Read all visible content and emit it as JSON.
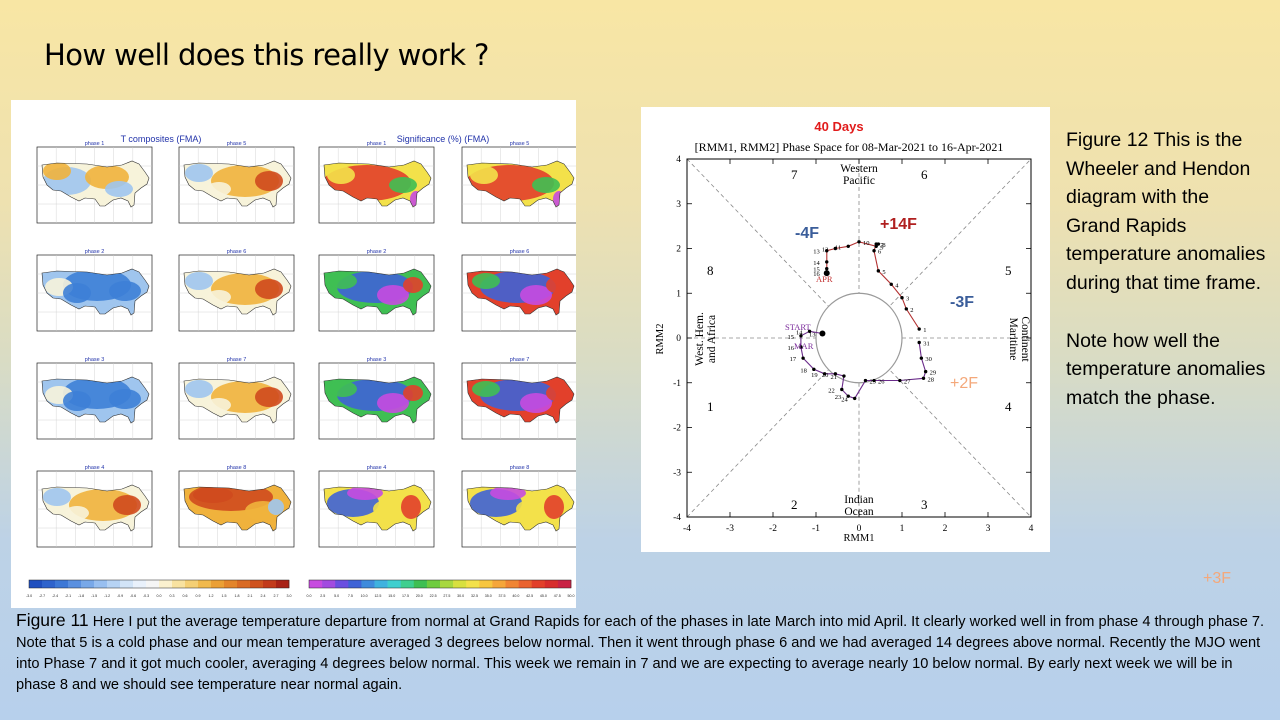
{
  "slide": {
    "title": "How well does this really work ?",
    "side_paragraph_1": "Figure 12  This is the Wheeler  and Hendon diagram with the Grand Rapids temperature anomalies during that time frame.",
    "side_paragraph_2": "Note how well the temperature anomalies match the phase.",
    "floating_label": "+3F",
    "caption_label": "Figure 11",
    "caption_text": " Here I put the average temperature departure from normal at Grand Rapids for each of the phases in late March into mid April.  It clearly worked well in from phase 4 through phase 7.  Note that 5 is a cold phase and our mean temperature averaged 3 degrees below normal.  Then it went through phase 6 and we had averaged 14 degrees above normal.  Recently the MJO went into Phase 7 and it got much cooler, averaging 4 degrees below normal.  This week we remain in 7 and we are expecting to average nearly 10 below normal.  By early next week we will be in phase 8 and we should see temperature near normal again."
  },
  "figure11": {
    "left_header": "T composites (FMA)",
    "right_header": "Significance (%) (FMA)",
    "left_colorbar_ticks": [
      "-3.0",
      "-2.7",
      "-2.4",
      "-2.1",
      "-1.8",
      "-1.5",
      "-1.2",
      "-0.9",
      "-0.6",
      "-0.3",
      "0.0",
      "0.3",
      "0.6",
      "0.9",
      "1.2",
      "1.5",
      "1.8",
      "2.1",
      "2.4",
      "2.7",
      "3.0"
    ],
    "right_colorbar_ticks": [
      "0.0",
      "2.5",
      "5.0",
      "7.5",
      "10.0",
      "12.5",
      "15.0",
      "17.5",
      "20.0",
      "22.5",
      "27.5",
      "30.0",
      "32.5",
      "35.0",
      "37.5",
      "40.0",
      "42.5",
      "45.0",
      "47.5",
      "50.0"
    ],
    "rows": [
      {
        "left_phase": "phase 1",
        "right_phase": "phase 5",
        "left_style": "mixed",
        "right_style": "warm",
        "sig_left": "hot",
        "sig_right": "hot"
      },
      {
        "left_phase": "phase 2",
        "right_phase": "phase 6",
        "left_style": "cool",
        "right_style": "warm",
        "sig_left": "cool",
        "sig_right": "cool"
      },
      {
        "left_phase": "phase 3",
        "right_phase": "phase 7",
        "left_style": "cool",
        "right_style": "warm",
        "sig_left": "cool",
        "sig_right": "cool"
      },
      {
        "left_phase": "phase 4",
        "right_phase": "phase 8",
        "left_style": "warm",
        "right_style": "hot",
        "sig_left": "mixed",
        "sig_right": "mixed"
      }
    ],
    "colors": {
      "cold": "#3d7fd6",
      "cool": "#9fc5ee",
      "neutral": "#f7f3da",
      "warm": "#f0b23c",
      "hot": "#cf4a1e",
      "sig_purple": "#c74be0",
      "sig_blue": "#3f63d6",
      "sig_green": "#3fbf53",
      "sig_yellow": "#f3e14a",
      "sig_red": "#e2402b"
    }
  },
  "figure12": {
    "title_red": "40 Days",
    "title": "[RMM1, RMM2] Phase Space for 08-Mar-2021 to 16-Apr-2021",
    "x_label": "RMM1",
    "y_label": "RMM2",
    "region_top": [
      "Western",
      "Pacific"
    ],
    "region_bottom": [
      "Indian",
      "Ocean"
    ],
    "region_left": [
      "West. Hem.",
      "and Africa"
    ],
    "region_right": [
      "Maritime",
      "Continent"
    ],
    "phase_numbers": [
      "1",
      "2",
      "3",
      "4",
      "5",
      "6",
      "7",
      "8"
    ],
    "x_ticks": [
      "-4",
      "-3",
      "-2",
      "-1",
      "0",
      "1",
      "2",
      "3",
      "4"
    ],
    "y_ticks": [
      "-4",
      "-3",
      "-2",
      "-1",
      "0",
      "1",
      "2",
      "3",
      "4"
    ],
    "start_label": "START",
    "mar_label": "MAR",
    "apr_label": "APR",
    "anomalies": {
      "minus4": "-4F",
      "plus14": "+14F",
      "minus3": "-3F",
      "plus2": "+2F"
    },
    "colors": {
      "march_line": "#6a2b8a",
      "april_line": "#b23030",
      "title_red": "#e11b1b",
      "anomaly_blue": "#3a5d9a",
      "anomaly_red": "#b01f1f",
      "anomaly_orange": "#f4a87a"
    }
  },
  "chart_data": {
    "type": "line",
    "title": "[RMM1, RMM2] Phase Space for 08-Mar-2021 to 16-Apr-2021",
    "xlabel": "RMM1",
    "ylabel": "RMM2",
    "xlim": [
      -4,
      4
    ],
    "ylim": [
      -4,
      4
    ],
    "series": [
      {
        "name": "MAR",
        "labels": [
          "13",
          "14",
          "15",
          "16",
          "17",
          "18",
          "19",
          "20",
          "21",
          "22",
          "23",
          "24",
          "25",
          "26",
          "27",
          "28",
          "29",
          "30",
          "31"
        ],
        "x": [
          -0.85,
          -1.15,
          -1.35,
          -1.35,
          -1.3,
          -1.05,
          -0.8,
          -0.55,
          -0.35,
          -0.4,
          -0.25,
          -0.1,
          0.15,
          0.35,
          0.95,
          1.5,
          1.55,
          1.45,
          1.4
        ],
        "y": [
          0.1,
          0.15,
          0.05,
          -0.2,
          -0.45,
          -0.7,
          -0.8,
          -0.8,
          -0.85,
          -1.15,
          -1.3,
          -1.35,
          -0.95,
          -0.95,
          -0.95,
          -0.9,
          -0.75,
          -0.45,
          -0.1
        ]
      },
      {
        "name": "APR",
        "labels": [
          "1",
          "2",
          "3",
          "4",
          "5",
          "6",
          "7",
          "8",
          "9",
          "10",
          "11",
          "12",
          "13",
          "14",
          "15",
          "16"
        ],
        "x": [
          1.4,
          1.1,
          1.0,
          0.75,
          0.45,
          0.35,
          0.4,
          0.45,
          0.4,
          0.0,
          -0.25,
          -0.55,
          -0.75,
          -0.75,
          -0.75,
          -0.75
        ],
        "y": [
          0.2,
          0.65,
          0.9,
          1.2,
          1.5,
          1.95,
          2.1,
          2.1,
          2.05,
          2.15,
          2.05,
          2.0,
          1.95,
          1.7,
          1.55,
          1.45
        ]
      }
    ]
  }
}
